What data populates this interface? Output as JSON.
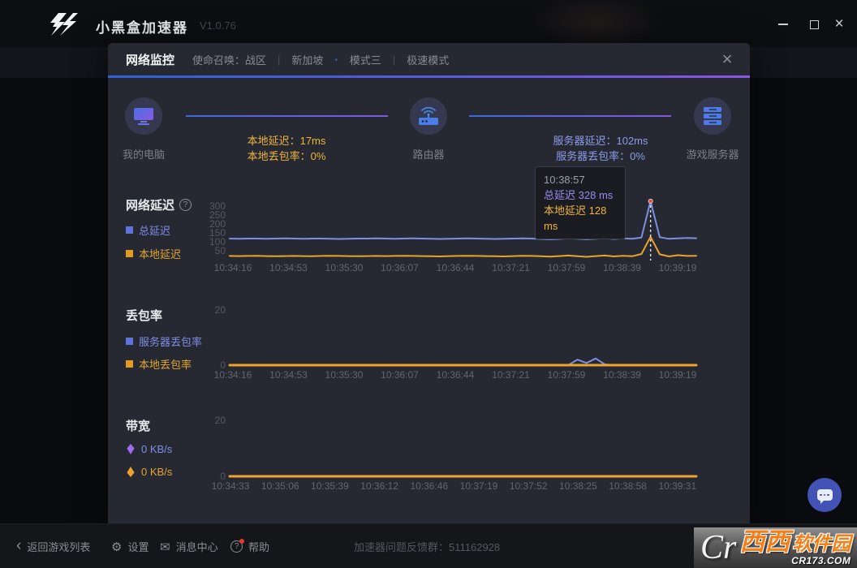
{
  "window": {
    "app_title": "小黑盒加速器",
    "version": "V1.0.76",
    "controls": {
      "minimize": "minimize",
      "maximize": "maximize",
      "close": "×"
    }
  },
  "dialog": {
    "title": "网络监控",
    "game": "使命召唤：战区",
    "separator": "|",
    "region": "新加坡",
    "region_dot": "·",
    "mode": "模式三",
    "speed_mode": "极速模式",
    "close": "×"
  },
  "nodes": {
    "computer": "我的电脑",
    "router": "路由器",
    "server": "游戏服务器"
  },
  "links": {
    "local_latency": "本地延迟：17ms",
    "local_loss": "本地丢包率：0%",
    "server_latency": "服务器延迟：102ms",
    "server_loss": "服务器丢包率：0%"
  },
  "tooltip": {
    "time": "10:38:57",
    "total_label": "总延迟",
    "total_value": "328 ms",
    "local_label": "本地延迟",
    "local_value": "128 ms"
  },
  "chart_data": [
    {
      "type": "line",
      "title": "网络延迟",
      "help_icon": "?",
      "legend": [
        {
          "label": "总延迟",
          "color": "#5f73dc"
        },
        {
          "label": "本地延迟",
          "color": "#e2991f"
        }
      ],
      "ylim": [
        0,
        330
      ],
      "yticks": [
        300,
        250,
        200,
        150,
        100,
        50
      ],
      "xticks": [
        "10:34:16",
        "10:34:53",
        "10:35:30",
        "10:36:07",
        "10:36:44",
        "10:37:21",
        "10:37:59",
        "10:38:39",
        "10:39:19"
      ],
      "series": [
        {
          "name": "总延迟",
          "color": "#7d8fe0",
          "width": 2,
          "values": [
            118,
            117,
            118,
            118,
            117,
            118,
            119,
            118,
            117,
            118,
            118,
            117,
            116,
            117,
            118,
            118,
            119,
            118,
            117,
            118,
            119,
            118,
            117,
            116,
            117,
            118,
            119,
            118,
            117,
            116,
            117,
            118,
            119,
            118,
            116,
            114,
            116,
            119,
            117,
            114,
            117,
            120,
            116,
            119,
            117,
            124,
            328,
            126,
            117,
            119,
            122,
            120
          ]
        },
        {
          "name": "本地延迟",
          "color": "#e8a42c",
          "width": 2,
          "values": [
            21,
            20,
            21,
            22,
            20,
            19,
            20,
            21,
            20,
            19,
            21,
            22,
            21,
            20,
            19,
            20,
            21,
            20,
            21,
            22,
            21,
            20,
            19,
            18,
            20,
            21,
            22,
            21,
            20,
            19,
            18,
            20,
            22,
            21,
            19,
            17,
            20,
            23,
            19,
            16,
            20,
            23,
            18,
            22,
            19,
            32,
            128,
            30,
            18,
            25,
            21,
            22
          ]
        }
      ],
      "annotation": {
        "time": "10:38:57",
        "index": 46,
        "value": 328,
        "dot_color": "#e04a40"
      }
    },
    {
      "type": "line",
      "title": "丢包率",
      "legend": [
        {
          "label": "服务器丢包率",
          "color": "#5f73dc"
        },
        {
          "label": "本地丢包率",
          "color": "#e2991f"
        }
      ],
      "ylim": [
        0,
        20
      ],
      "yticks": [
        20,
        0
      ],
      "xticks": [
        "10:34:16",
        "10:34:53",
        "10:35:30",
        "10:36:07",
        "10:36:44",
        "10:37:21",
        "10:37:59",
        "10:38:39",
        "10:39:19"
      ],
      "series": [
        {
          "name": "服务器丢包率",
          "color": "#7d8fe0",
          "width": 2,
          "values": [
            0,
            0,
            0,
            0,
            0,
            0,
            0,
            0,
            0,
            0,
            0,
            0,
            0,
            0,
            0,
            0,
            0,
            0,
            0,
            0,
            0,
            0,
            0,
            0,
            0,
            0,
            0,
            0,
            0,
            0,
            0,
            0,
            0,
            0,
            0,
            0,
            0,
            0,
            2,
            0.8,
            2.4,
            0.3,
            0,
            0,
            0,
            0,
            0,
            0,
            0,
            0,
            0,
            0
          ]
        },
        {
          "name": "本地丢包率",
          "color": "#f0a22a",
          "width": 3,
          "flat": 0
        }
      ]
    },
    {
      "type": "line",
      "title": "带宽",
      "legend": [
        {
          "label": "0 KB/s",
          "color": "#9d6cf0",
          "direction": "up"
        },
        {
          "label": "0 KB/s",
          "color": "#f0a22a",
          "direction": "down"
        }
      ],
      "ylim": [
        0,
        20
      ],
      "yticks": [
        20,
        0
      ],
      "xticks": [
        "10:34:33",
        "10:35:06",
        "10:35:39",
        "10:36:12",
        "10:36:46",
        "10:37:19",
        "10:37:52",
        "10:38:25",
        "10:38:58",
        "10:39:31"
      ],
      "series": [
        {
          "name": "上行",
          "color": "#9d6cf0",
          "width": 2,
          "flat": 0
        },
        {
          "name": "下行",
          "color": "#f0a22a",
          "width": 3,
          "flat": 0
        }
      ]
    }
  ],
  "footer": {
    "back": "返回游戏列表",
    "settings": "设置",
    "messages": "消息中心",
    "help": "帮助",
    "feedback": "加速器问题反馈群：511162928"
  },
  "watermark": {
    "letters": "Cr",
    "brand": "西西",
    "brand2": "软件园",
    "domain": "CR173.COM"
  },
  "colors": {
    "accent_blue": "#2f62d9",
    "accent_purple": "#8a55e4",
    "line_total": "#7d8fe0",
    "line_local": "#e8a42c",
    "local_text": "#f0b53c",
    "server_text": "#8d9cea",
    "tooltip_total": "#9c8cf0",
    "spike_dot": "#e04a40",
    "chat_fab": "#4353b5",
    "watermark_orange": "#f57f17"
  }
}
